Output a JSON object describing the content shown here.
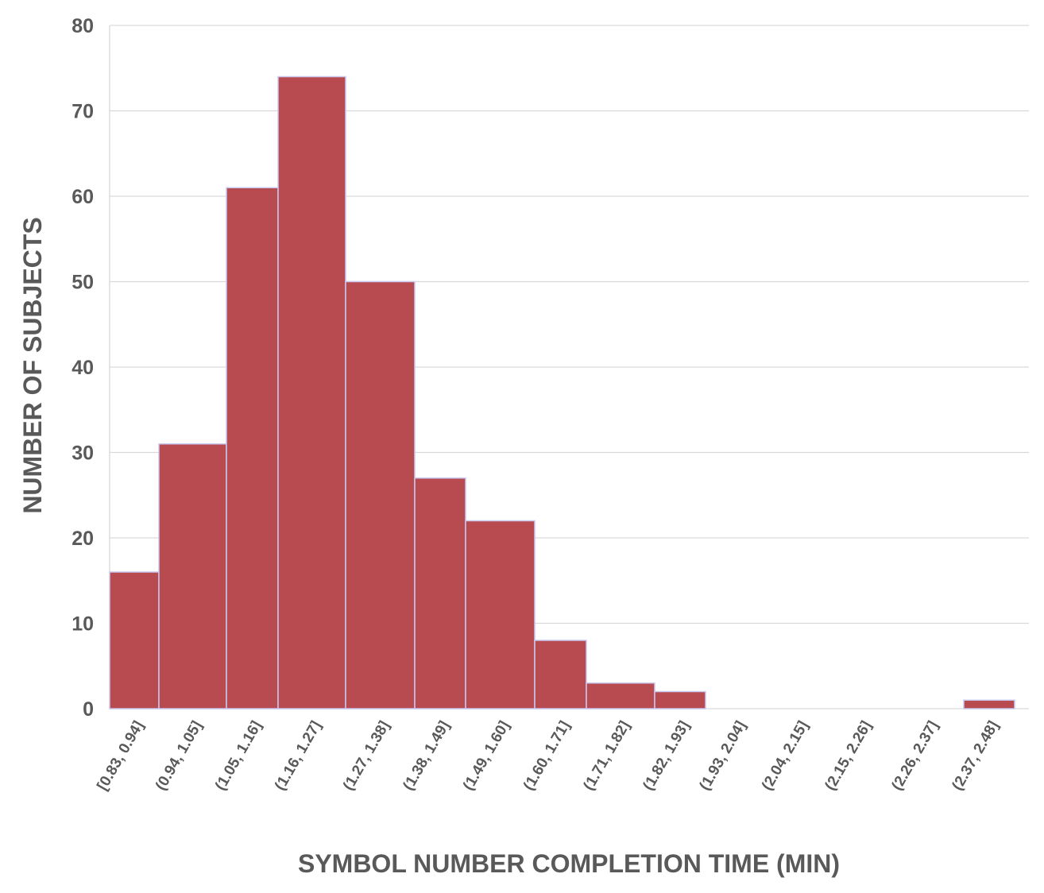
{
  "chart_data": {
    "type": "bar",
    "title": "",
    "xlabel": "SYMBOL NUMBER COMPLETION TIME (MIN)",
    "ylabel": "NUMBER OF SUBJECTS",
    "ylim": [
      0,
      80
    ],
    "yticks": [
      0,
      10,
      20,
      30,
      40,
      50,
      60,
      70,
      80
    ],
    "categories": [
      "[0.83, 0.94]",
      "(0.94, 1.05]",
      "(1.05, 1.16]",
      "(1.16, 1.27]",
      "(1.27, 1.38]",
      "(1.38, 1.49]",
      "(1.49, 1.60]",
      "(1.60, 1.71]",
      "(1.71, 1.82]",
      "(1.82, 1.93]",
      "(1.93, 2.04]",
      "(2.04, 2.15]",
      "(2.15, 2.26]",
      "(2.26, 2.37]",
      "(2.37, 2.48]"
    ],
    "values": [
      16,
      31,
      61,
      74,
      50,
      27,
      22,
      8,
      3,
      2,
      0,
      0,
      0,
      0,
      1
    ],
    "grid": true,
    "legend": "none",
    "bar_color": "#b74b4f"
  }
}
